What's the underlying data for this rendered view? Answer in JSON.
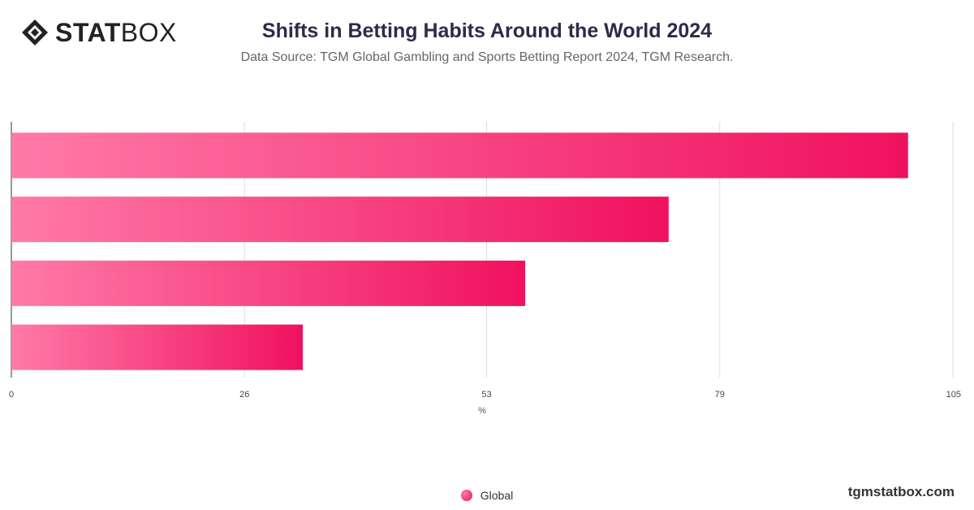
{
  "header": {
    "logo_bold": "STAT",
    "logo_light": "BOX",
    "title": "Shifts in Betting Habits Around the World 2024",
    "subtitle": "Data Source: TGM Global Gambling and Sports Betting Report 2024, TGM Research."
  },
  "chart_data": {
    "type": "bar",
    "orientation": "horizontal",
    "title": "Shifts in Betting Habits Around the World 2024",
    "xlabel": "%",
    "ylabel": "",
    "xlim": [
      0,
      105
    ],
    "ticks": [
      "0",
      "26",
      "53",
      "79",
      "105"
    ],
    "series": [
      {
        "name": "Global",
        "values": [
          100,
          73.3,
          57.3,
          32.5
        ]
      }
    ],
    "grid": true,
    "legend_position": "bottom-center",
    "colors": {
      "bar_start": "#ff7aa8",
      "bar_end": "#f0115f"
    }
  },
  "legend": {
    "label": "Global"
  },
  "footer": {
    "site": "tgmstatbox.com"
  }
}
